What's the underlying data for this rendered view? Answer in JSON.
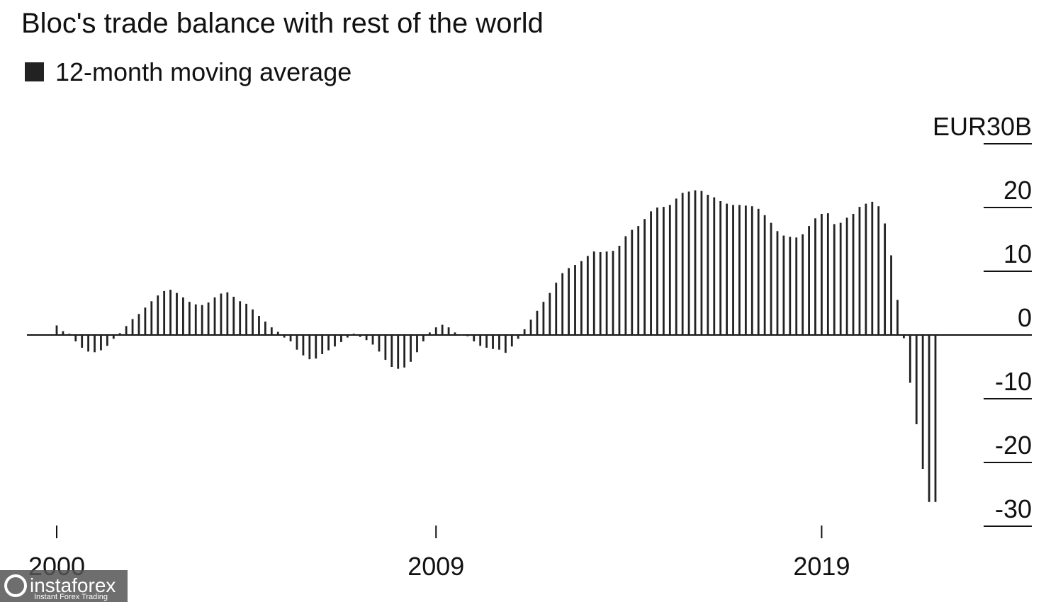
{
  "chart_data": {
    "type": "bar",
    "title": "Bloc's trade balance with rest of the world",
    "categories": [
      "2000",
      null,
      null,
      null,
      null,
      null,
      null,
      null,
      null,
      null,
      null,
      null,
      null,
      null,
      null,
      null,
      null,
      null,
      null,
      null,
      null,
      null,
      null,
      null,
      null,
      null,
      null,
      null,
      null,
      null,
      null,
      null,
      null,
      null,
      null,
      null,
      null,
      null,
      null,
      null,
      null,
      null,
      null,
      null,
      null,
      null,
      null,
      null,
      null,
      null,
      null,
      null,
      null,
      null,
      null,
      null,
      null,
      null,
      null,
      null,
      "2009",
      null,
      null,
      null,
      null,
      null,
      null,
      null,
      null,
      null,
      null,
      null,
      null,
      null,
      null,
      null,
      null,
      null,
      null,
      null,
      null,
      null,
      null,
      null,
      null,
      null,
      null,
      null,
      null,
      null,
      null,
      null,
      null,
      null,
      null,
      null,
      null,
      null,
      null,
      null,
      null,
      null,
      null,
      null,
      null,
      null,
      null,
      null,
      null,
      null,
      null,
      null,
      null,
      null,
      null,
      null,
      null,
      null,
      null,
      null,
      null,
      "2019",
      null,
      null,
      null,
      null,
      null,
      null,
      null,
      null,
      null,
      null,
      null,
      null,
      null,
      null,
      null,
      null,
      null,
      null
    ],
    "series": [
      {
        "name": "12-month moving average",
        "color": "#222222",
        "values": [
          1.5,
          0.6,
          0.2,
          -1,
          -2,
          -2.6,
          -2.7,
          -2.4,
          -1.7,
          -0.6,
          0.3,
          1.4,
          2.5,
          3.3,
          4.3,
          5.3,
          6.2,
          6.9,
          7.1,
          6.6,
          5.9,
          5.2,
          4.8,
          4.7,
          5.1,
          5.9,
          6.5,
          6.7,
          6.0,
          5.3,
          4.9,
          4.0,
          3.0,
          2.1,
          1.2,
          0.5,
          -0.4,
          -1,
          -2.3,
          -3.2,
          -3.8,
          -3.7,
          -3.0,
          -2.4,
          -1.8,
          -1.1,
          -0.4,
          0.2,
          -0.3,
          -0.8,
          -1.5,
          -2.6,
          -3.9,
          -5.0,
          -5.3,
          -5.1,
          -4.2,
          -2.7,
          -1.0,
          0.4,
          1.2,
          1.6,
          1.2,
          0.4,
          -0.1,
          -0.2,
          -1.0,
          -1.7,
          -2.0,
          -2.2,
          -2.3,
          -2.8,
          -1.8,
          -0.6,
          0.9,
          2.4,
          3.8,
          5.2,
          6.6,
          8.2,
          9.7,
          10.5,
          11.0,
          11.6,
          12.4,
          13.1,
          13.0,
          13.1,
          13.2,
          14.0,
          15.5,
          16.5,
          17.1,
          18.2,
          19.4,
          20.0,
          20.1,
          20.4,
          21.4,
          22.3,
          22.5,
          22.7,
          22.6,
          22.0,
          21.6,
          21.0,
          20.6,
          20.4,
          20.4,
          20.3,
          20.2,
          19.8,
          18.8,
          17.6,
          16.3,
          15.6,
          15.4,
          15.3,
          15.8,
          17.1,
          18.3,
          19.0,
          19.1,
          17.4,
          17.6,
          18.4,
          19.0,
          20.1,
          20.6,
          20.9,
          20.2,
          17.5,
          12.5,
          5.5,
          -0.5,
          -7.5,
          -14,
          -21,
          -26.2,
          -26.2
        ]
      }
    ],
    "ylim": [
      -30,
      30
    ],
    "yticks": [
      {
        "value": 30,
        "label": "EUR30B"
      },
      20,
      10,
      0,
      -10,
      -20,
      -30
    ],
    "legend": "top-left"
  },
  "watermark": {
    "brand": "instaforex",
    "tagline": "Instant Forex Trading"
  }
}
